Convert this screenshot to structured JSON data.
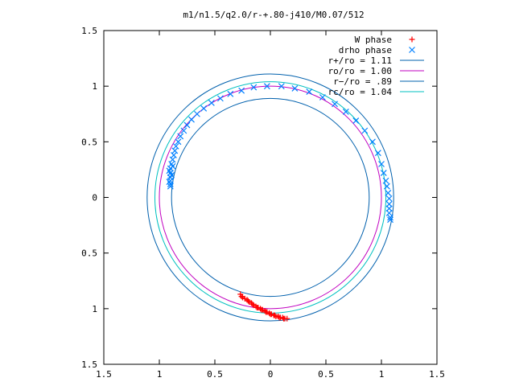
{
  "chart_data": {
    "type": "scatter",
    "title": "m1/n1.5/q2.0/r-+.80-j410/M0.07/512",
    "xlabel": "",
    "ylabel": "",
    "xlim": [
      -1.5,
      1.5
    ],
    "ylim": [
      -1.5,
      1.5
    ],
    "xticks": [
      -1.5,
      -1,
      -0.5,
      0,
      0.5,
      1,
      1.5
    ],
    "yticks": [
      -1.5,
      -1,
      -0.5,
      0,
      0.5,
      1,
      1.5
    ],
    "xtick_labels": [
      "1.5",
      "1",
      "0.5",
      "0",
      "0.5",
      "1",
      "1.5"
    ],
    "ytick_labels": [
      "1.5",
      "1",
      "0.5",
      "0",
      "0.5",
      "1",
      "1.5"
    ],
    "grid": false,
    "legend_position": "top-right",
    "series": [
      {
        "name": "W phase",
        "kind": "points",
        "marker": "plus",
        "color": "#ff0000",
        "points": [
          [
            -0.27,
            -0.87
          ],
          [
            -0.26,
            -0.89
          ],
          [
            -0.25,
            -0.9
          ],
          [
            -0.23,
            -0.91
          ],
          [
            -0.21,
            -0.92
          ],
          [
            -0.19,
            -0.94
          ],
          [
            -0.17,
            -0.95
          ],
          [
            -0.15,
            -0.97
          ],
          [
            -0.13,
            -0.98
          ],
          [
            -0.11,
            -0.99
          ],
          [
            -0.09,
            -1.0
          ],
          [
            -0.07,
            -1.01
          ],
          [
            -0.05,
            -1.02
          ],
          [
            -0.03,
            -1.03
          ],
          [
            -0.01,
            -1.04
          ],
          [
            0.01,
            -1.05
          ],
          [
            0.03,
            -1.06
          ],
          [
            0.05,
            -1.07
          ],
          [
            0.07,
            -1.07
          ],
          [
            0.09,
            -1.08
          ],
          [
            0.11,
            -1.08
          ],
          [
            0.13,
            -1.09
          ],
          [
            0.15,
            -1.09
          ],
          [
            -0.2,
            -0.93
          ],
          [
            -0.16,
            -0.96
          ],
          [
            -0.12,
            -0.99
          ],
          [
            -0.08,
            -1.01
          ],
          [
            -0.04,
            -1.03
          ],
          [
            0.0,
            -1.05
          ],
          [
            0.04,
            -1.06
          ],
          [
            0.08,
            -1.08
          ],
          [
            0.12,
            -1.09
          ]
        ]
      },
      {
        "name": "drho phase",
        "kind": "points",
        "marker": "cross",
        "color": "#0080ff",
        "points": [
          [
            -0.9,
            0.1
          ],
          [
            -0.9,
            0.12
          ],
          [
            -0.9,
            0.15
          ],
          [
            -0.9,
            0.18
          ],
          [
            -0.9,
            0.22
          ],
          [
            -0.9,
            0.26
          ],
          [
            -0.89,
            0.3
          ],
          [
            -0.88,
            0.34
          ],
          [
            -0.87,
            0.38
          ],
          [
            -0.86,
            0.42
          ],
          [
            -0.85,
            0.46
          ],
          [
            -0.83,
            0.5
          ],
          [
            -0.81,
            0.55
          ],
          [
            -0.78,
            0.6
          ],
          [
            -0.75,
            0.65
          ],
          [
            -0.71,
            0.7
          ],
          [
            -0.66,
            0.75
          ],
          [
            -0.6,
            0.8
          ],
          [
            -0.53,
            0.85
          ],
          [
            -0.45,
            0.89
          ],
          [
            -0.36,
            0.93
          ],
          [
            -0.26,
            0.96
          ],
          [
            -0.15,
            0.99
          ],
          [
            -0.03,
            1.0
          ],
          [
            0.1,
            1.0
          ],
          [
            0.22,
            0.98
          ],
          [
            0.35,
            0.95
          ],
          [
            0.47,
            0.9
          ],
          [
            0.58,
            0.84
          ],
          [
            0.68,
            0.77
          ],
          [
            0.77,
            0.69
          ],
          [
            0.85,
            0.6
          ],
          [
            0.92,
            0.5
          ],
          [
            0.97,
            0.4
          ],
          [
            1.0,
            0.3
          ],
          [
            1.02,
            0.22
          ],
          [
            1.04,
            0.15
          ],
          [
            1.05,
            0.1
          ],
          [
            1.06,
            0.04
          ],
          [
            1.07,
            -0.01
          ],
          [
            1.07,
            -0.06
          ],
          [
            1.07,
            -0.1
          ],
          [
            1.07,
            -0.14
          ],
          [
            1.08,
            -0.18
          ],
          [
            1.08,
            -0.2
          ],
          [
            -0.91,
            0.14
          ],
          [
            -0.89,
            0.2
          ],
          [
            -0.91,
            0.24
          ],
          [
            -0.88,
            0.28
          ]
        ]
      },
      {
        "name": "r+/ro = 1.11",
        "kind": "circle",
        "radius": 1.11,
        "color": "#0060ad"
      },
      {
        "name": "ro/ro = 1.00",
        "kind": "circle",
        "radius": 1.0,
        "color": "#c000c0"
      },
      {
        "name": "r−/ro = .89",
        "kind": "circle",
        "radius": 0.89,
        "color": "#0060ad"
      },
      {
        "name": "rc/ro = 1.04",
        "kind": "circle",
        "radius": 1.04,
        "color": "#00c0c0"
      }
    ]
  }
}
